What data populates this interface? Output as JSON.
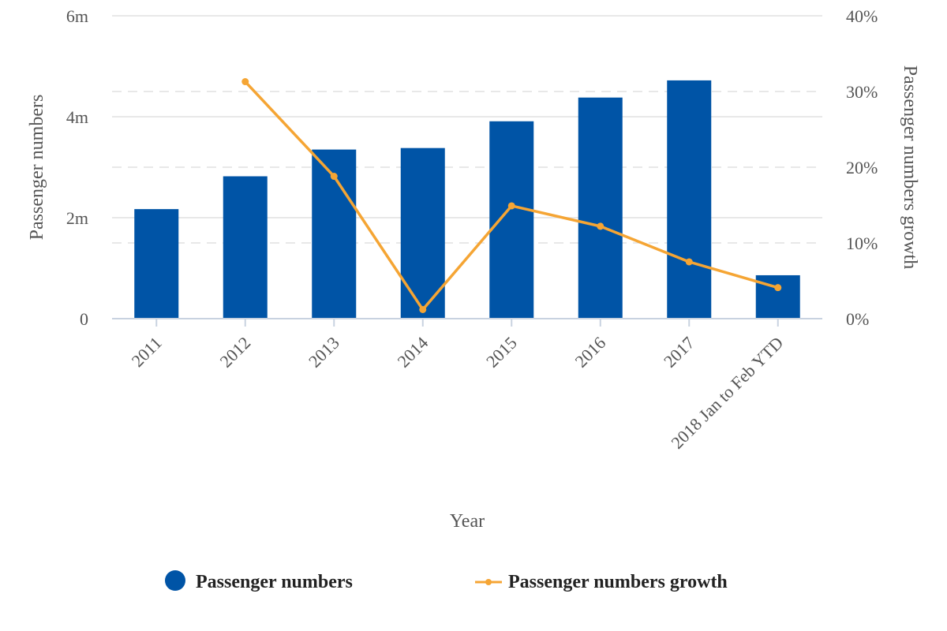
{
  "chart_data": {
    "type": "bar",
    "categories": [
      "2011",
      "2012",
      "2013",
      "2014",
      "2015",
      "2016",
      "2017",
      "2018 Jan to Feb YTD"
    ],
    "series": [
      {
        "name": "Passenger numbers",
        "type": "bar",
        "axis": "left",
        "color": "#0054a6",
        "values": [
          2170000,
          2820000,
          3350000,
          3380000,
          3910000,
          4380000,
          4720000,
          860000
        ]
      },
      {
        "name": "Passenger numbers growth",
        "type": "line",
        "axis": "right",
        "color": "#f5a534",
        "values": [
          null,
          31.3,
          18.8,
          1.2,
          14.9,
          12.2,
          7.5,
          4.1
        ]
      }
    ],
    "xlabel": "Year",
    "ylabel": "Passenger numbers",
    "y2label": "Passenger numbers growth",
    "ylim": [
      0,
      6000000
    ],
    "y2lim": [
      0,
      40
    ],
    "yticks": [
      {
        "value": 0,
        "label": "0"
      },
      {
        "value": 2000000,
        "label": "2m"
      },
      {
        "value": 4000000,
        "label": "4m"
      },
      {
        "value": 6000000,
        "label": "6m"
      }
    ],
    "y2ticks": [
      {
        "value": 0,
        "label": "0%"
      },
      {
        "value": 10,
        "label": "10%"
      },
      {
        "value": 20,
        "label": "20%"
      },
      {
        "value": 30,
        "label": "30%"
      },
      {
        "value": 40,
        "label": "40%"
      }
    ],
    "grid": true,
    "legend_position": "bottom"
  }
}
